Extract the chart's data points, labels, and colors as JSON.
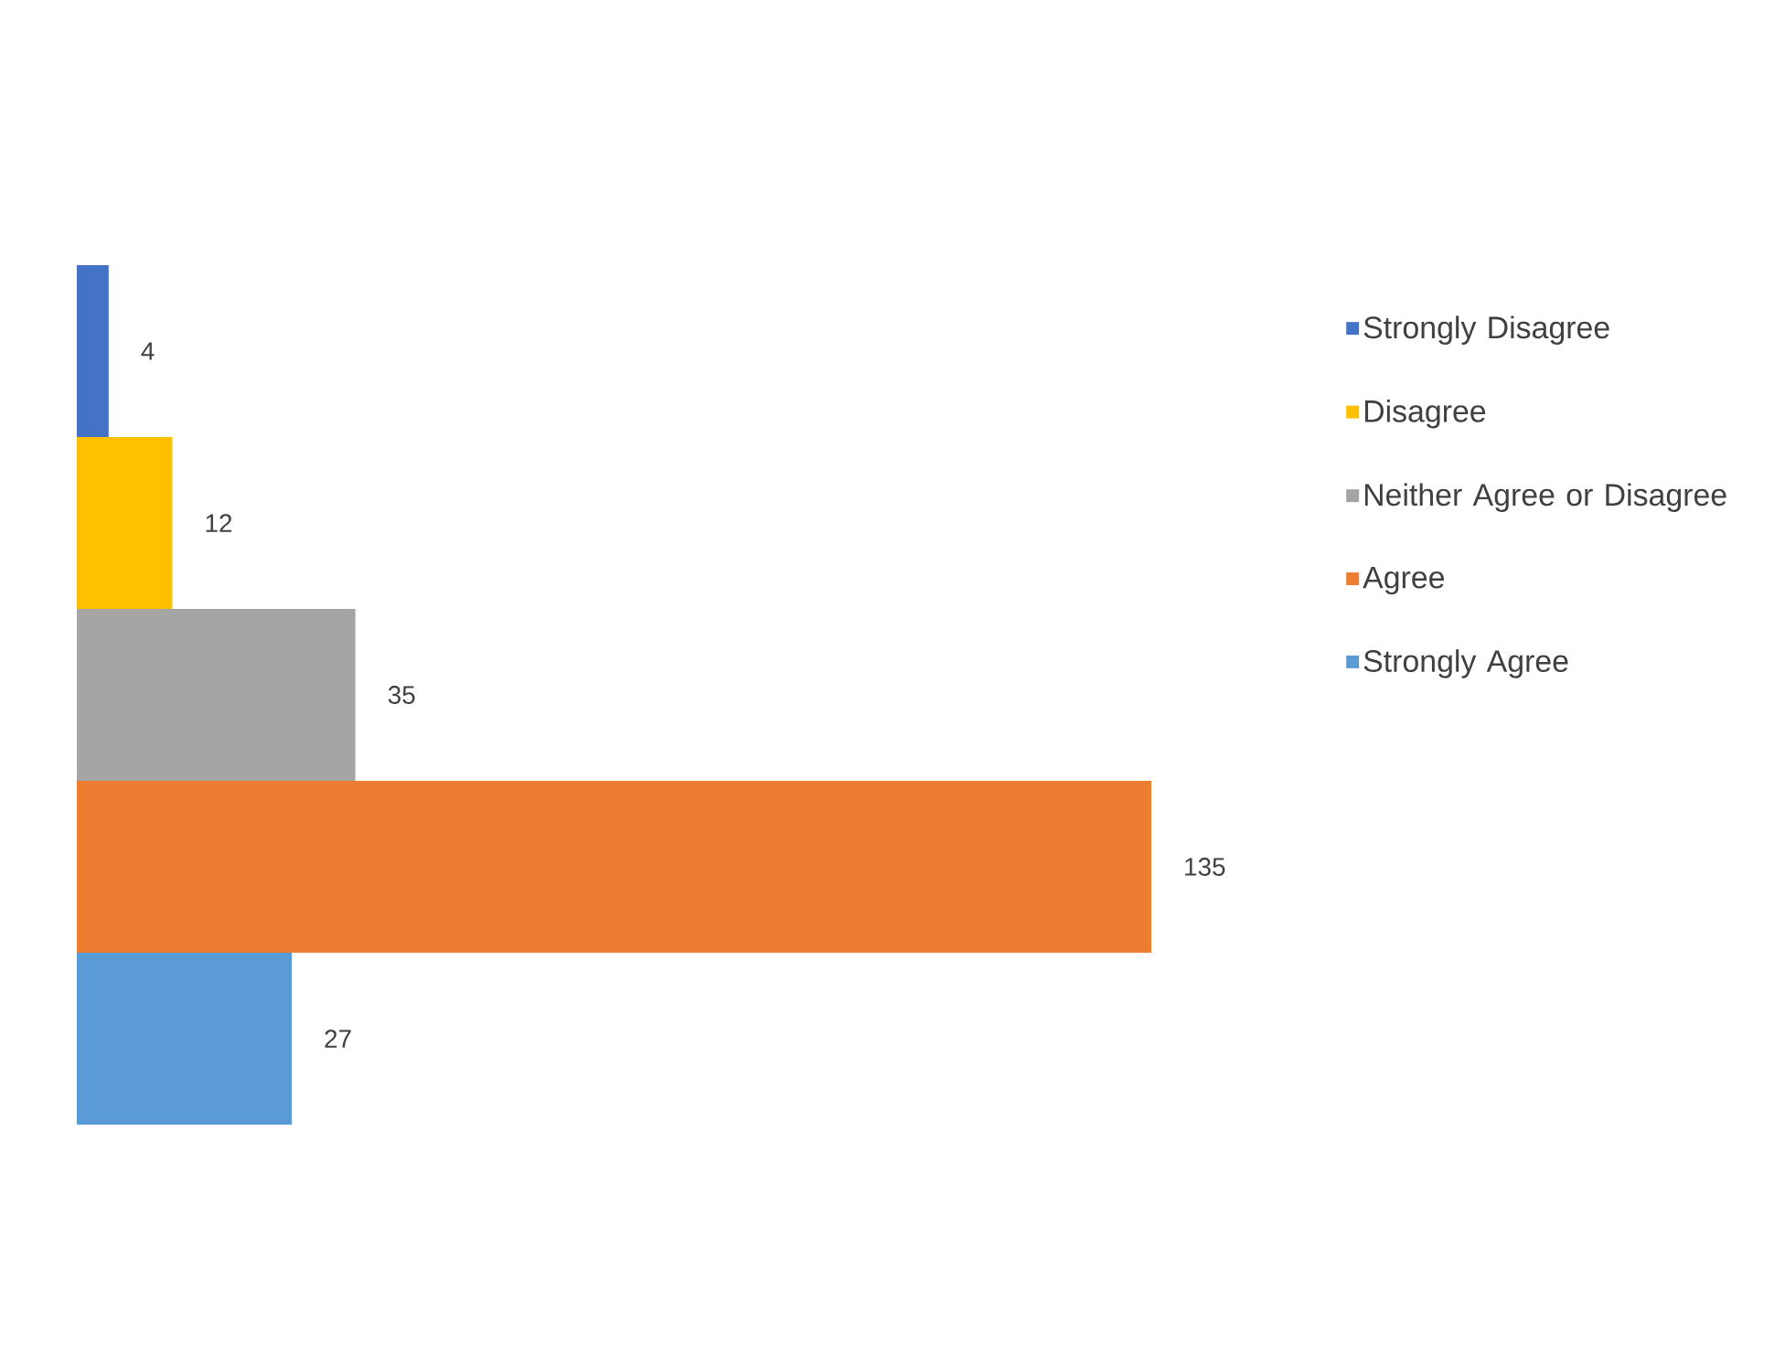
{
  "chart_data": {
    "type": "bar",
    "orientation": "horizontal",
    "categories": [
      null
    ],
    "data_labels": true,
    "legend": "right",
    "series": [
      {
        "name": "Strongly Disagree",
        "color": "#4472c4",
        "values": [
          4
        ]
      },
      {
        "name": "Disagree",
        "color": "#ffc000",
        "values": [
          12
        ]
      },
      {
        "name": "Neither Agree or Disagree",
        "color": "#a5a5a5",
        "values": [
          35
        ]
      },
      {
        "name": "Agree",
        "color": "#ed7d31",
        "values": [
          135
        ]
      },
      {
        "name": "Strongly Agree",
        "color": "#5b9bd5",
        "values": [
          27
        ]
      }
    ]
  }
}
